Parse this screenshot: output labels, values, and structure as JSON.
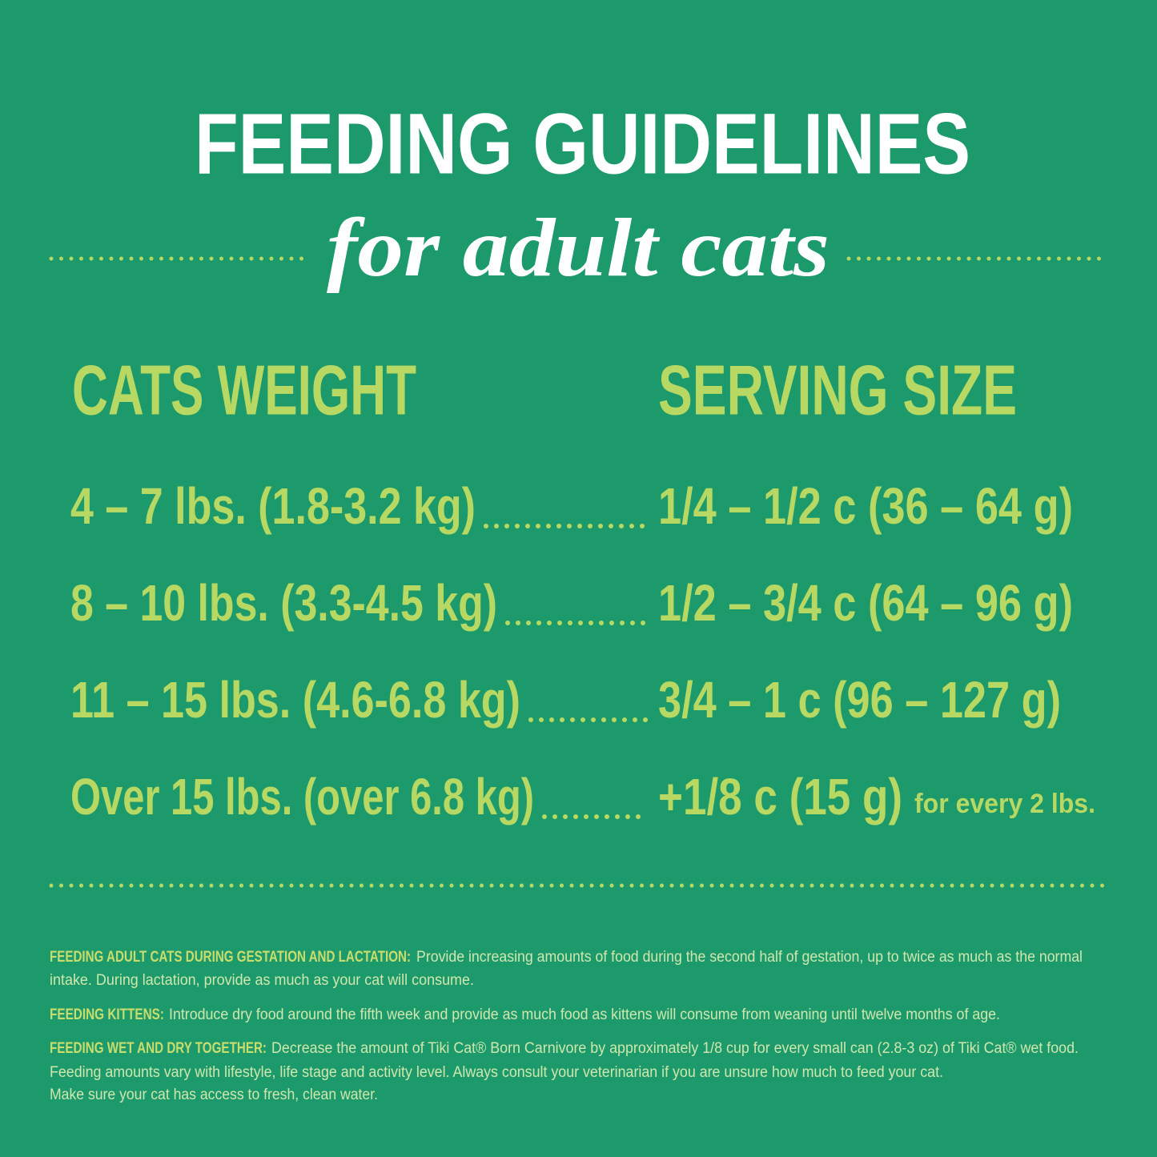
{
  "header": {
    "title": "FEEDING GUIDELINES",
    "subtitle": "for adult cats"
  },
  "table": {
    "columns": [
      "CATS WEIGHT",
      "SERVING SIZE"
    ],
    "rows": [
      {
        "weight": "4 – 7 lbs. (1.8-3.2 kg)",
        "serving": "1/4 – 1/2 c (36 – 64 g)"
      },
      {
        "weight": "8 – 10 lbs. (3.3-4.5 kg)",
        "serving": "1/2 – 3/4 c (64 – 96 g)"
      },
      {
        "weight": "11 – 15 lbs. (4.6-6.8 kg)",
        "serving": "3/4 – 1 c (96 – 127 g)"
      },
      {
        "weight": "Over 15 lbs. (over 6.8 kg)",
        "serving": "+1/8 c (15 g)",
        "note": "for every 2 lbs."
      }
    ]
  },
  "notes": [
    {
      "label": "FEEDING ADULT CATS DURING GESTATION AND LACTATION:",
      "lines": [
        "Provide increasing amounts of food during the second half of gestation, up to twice as much as the normal",
        "intake.  During lactation, provide as much as your cat will consume."
      ]
    },
    {
      "label": "FEEDING KITTENS:",
      "lines": [
        "Introduce dry food around the fifth week and provide as much food as kittens will consume from weaning until twelve months of age."
      ]
    },
    {
      "label": "FEEDING WET AND DRY TOGETHER:",
      "lines": [
        "Decrease the amount of Tiki Cat® Born Carnivore by approximately 1/8 cup for every small can (2.8-3 oz) of Tiki Cat® wet food.",
        "Feeding amounts vary with lifestyle, life stage and activity level.  Always consult your veterinarian if you are unsure how much to feed your cat.",
        "Make sure your cat has access to fresh, clean water."
      ]
    }
  ]
}
